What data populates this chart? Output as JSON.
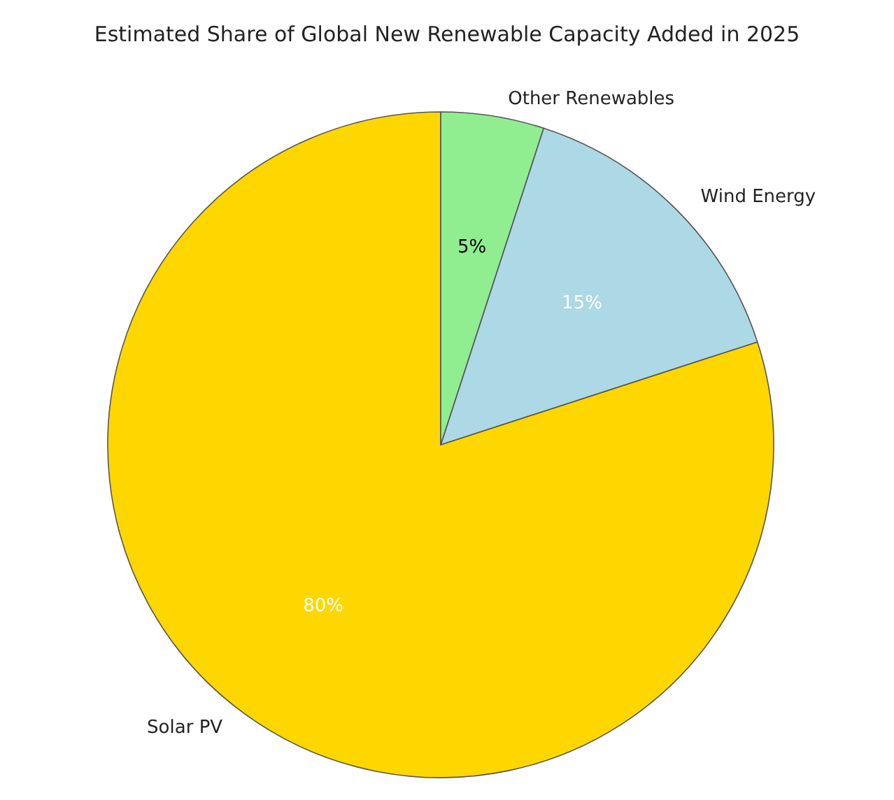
{
  "chart_data": {
    "type": "pie",
    "title": "Estimated Share of Global New Renewable Capacity Added in 2025",
    "categories": [
      "Solar PV",
      "Wind Energy",
      "Other Renewables"
    ],
    "values": [
      80,
      15,
      5
    ],
    "colors": [
      "#ffd700",
      "#add8e6",
      "#90ee90"
    ],
    "value_labels": [
      "80%",
      "15%",
      "5%"
    ],
    "legend": false
  }
}
